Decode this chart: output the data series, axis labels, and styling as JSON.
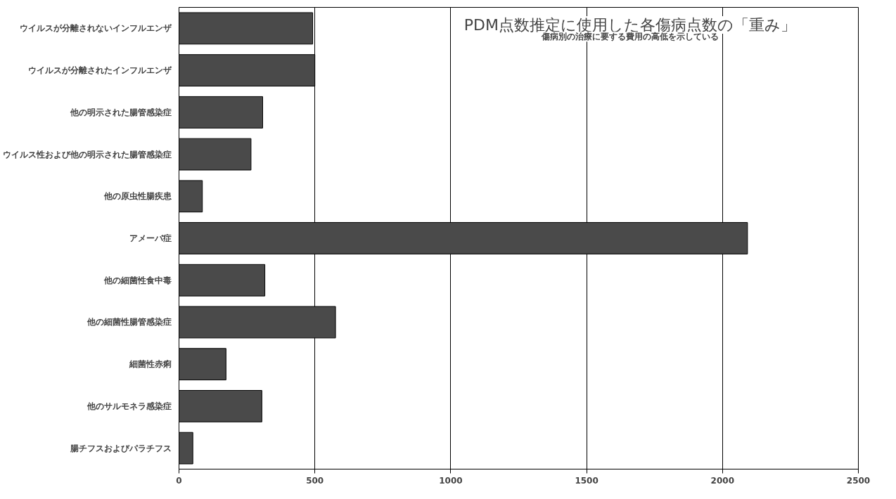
{
  "chart_data": {
    "type": "bar",
    "orientation": "horizontal",
    "title": "PDM点数推定に使用した各傷病点数の「重み」",
    "subtitle": "傷病別の治療に要する費用の高低を示している",
    "categories": [
      "ウイルスが分離されないインフルエンザ",
      "ウイルスが分離されたインフルエンザ",
      "他の明示された腸管感染症",
      "ウイルス性および他の明示された腸管感染症",
      "他の原虫性腸疾患",
      "アメーバ症",
      "他の細菌性食中毒",
      "他の細菌性腸管感染症",
      "細菌性赤痢",
      "他のサルモネラ感染症",
      "腸チフスおよびパラチフス"
    ],
    "values": [
      492,
      500,
      308,
      265,
      86,
      2092,
      316,
      576,
      173,
      305,
      51
    ],
    "color": "#4a4a4a",
    "xlim": [
      0,
      2500
    ],
    "xticks": [
      0,
      500,
      1000,
      1500,
      2000,
      2500
    ],
    "grid": "x"
  }
}
